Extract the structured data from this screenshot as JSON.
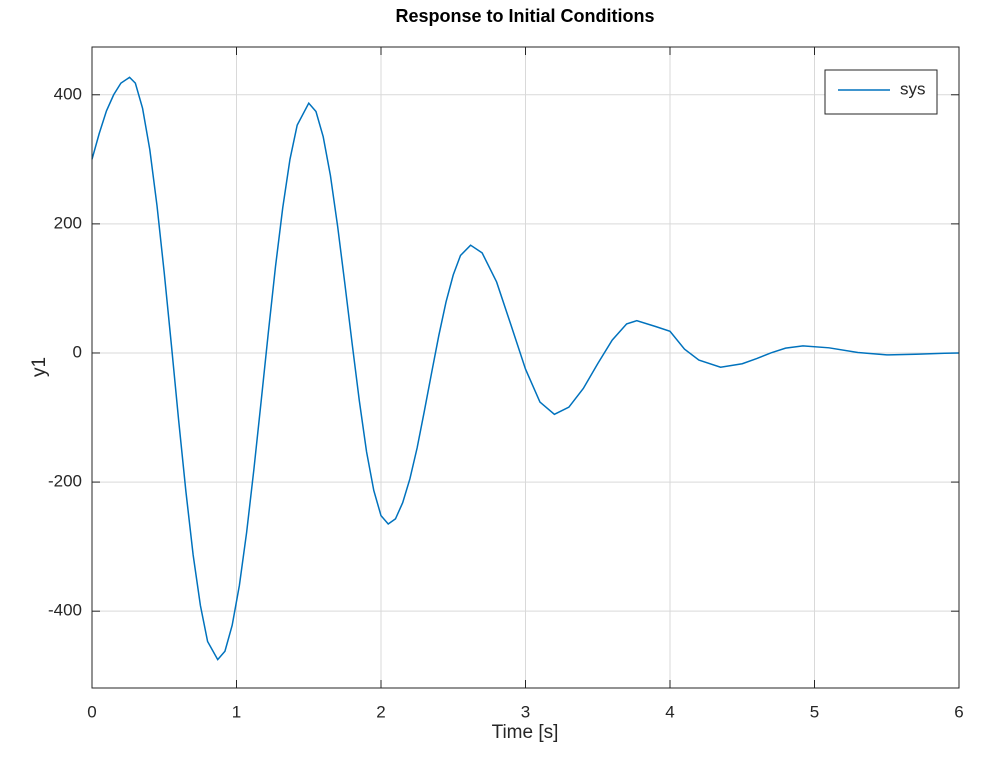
{
  "chart_data": {
    "type": "line",
    "title": "Response to Initial Conditions",
    "x_label": "Time [s]",
    "y_label": "y1",
    "x": [
      0,
      0.05,
      0.1,
      0.15,
      0.2,
      0.26,
      0.3,
      0.35,
      0.4,
      0.45,
      0.5,
      0.55,
      0.6,
      0.65,
      0.7,
      0.75,
      0.8,
      0.87,
      0.92,
      0.97,
      1.02,
      1.07,
      1.12,
      1.17,
      1.22,
      1.27,
      1.32,
      1.37,
      1.42,
      1.5,
      1.55,
      1.6,
      1.65,
      1.7,
      1.75,
      1.8,
      1.85,
      1.9,
      1.95,
      2.0,
      2.05,
      2.1,
      2.15,
      2.2,
      2.25,
      2.3,
      2.35,
      2.4,
      2.45,
      2.5,
      2.55,
      2.62,
      2.7,
      2.8,
      2.9,
      3.0,
      3.1,
      3.2,
      3.3,
      3.4,
      3.5,
      3.6,
      3.7,
      3.77,
      3.9,
      4.0,
      4.1,
      4.2,
      4.35,
      4.5,
      4.6,
      4.7,
      4.8,
      4.92,
      5.1,
      5.3,
      5.5,
      5.7,
      5.9,
      6.0
    ],
    "series": [
      {
        "name": "sys",
        "color": "#0072bd",
        "values": [
          300,
          340,
          375,
          400,
          418,
          427,
          418,
          379,
          315,
          228,
          124,
          11,
          -105,
          -215,
          -313,
          -391,
          -447,
          -475,
          -462,
          -422,
          -360,
          -278,
          -181,
          -76,
          31,
          134,
          225,
          300,
          353,
          387,
          374,
          335,
          275,
          196,
          107,
          15,
          -74,
          -153,
          -213,
          -252,
          -265,
          -257,
          -232,
          -195,
          -147,
          -90,
          -31,
          27,
          79,
          121,
          151,
          167,
          155,
          110,
          43,
          -25,
          -76,
          -95,
          -84,
          -55,
          -16.5,
          20,
          45,
          50,
          41,
          33.6,
          6,
          -11,
          -22,
          -16.7,
          -8.7,
          0.3,
          7.5,
          11,
          8,
          0.7,
          -3,
          -2,
          -0.5,
          0
        ]
      }
    ],
    "xlim": [
      0,
      6
    ],
    "xticks": [
      0,
      1,
      2,
      3,
      4,
      5,
      6
    ],
    "ylim": [
      -519,
      474
    ],
    "yticks": [
      -400,
      -200,
      0,
      200,
      400
    ],
    "grid": true,
    "legend": "top-right"
  }
}
